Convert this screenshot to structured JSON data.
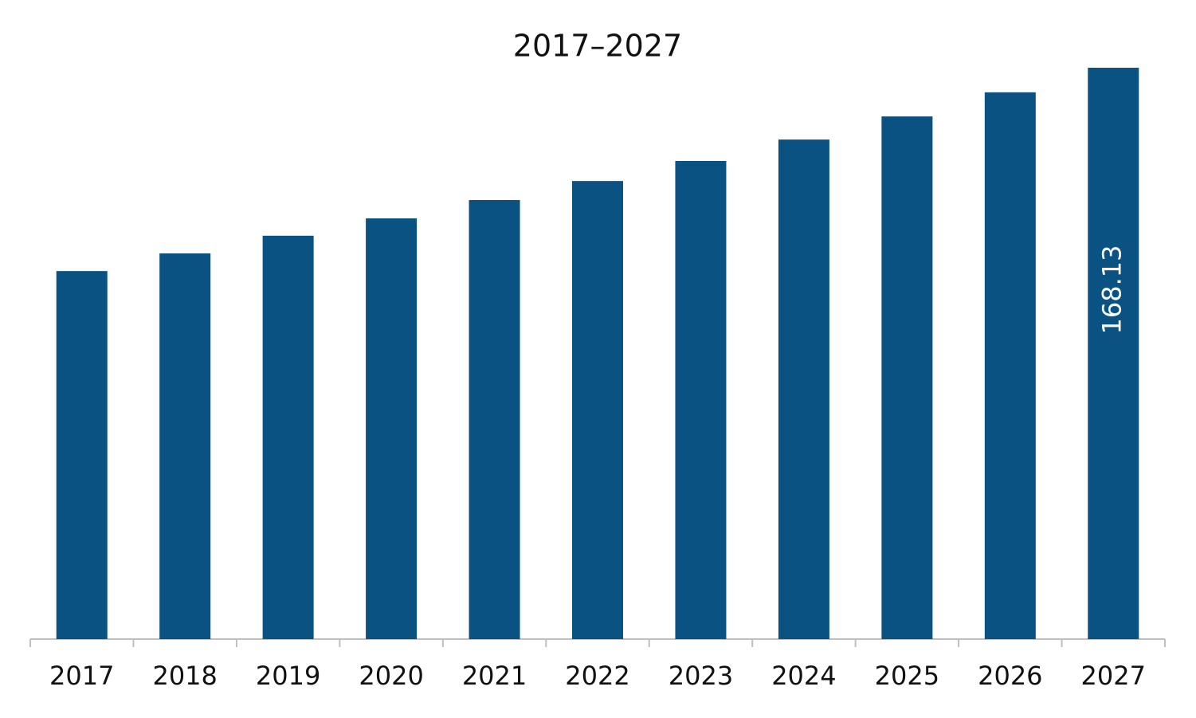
{
  "chart_data": {
    "type": "bar",
    "title": "2017–2027",
    "categories": [
      "2017",
      "2018",
      "2019",
      "2020",
      "2021",
      "2022",
      "2023",
      "2024",
      "2025",
      "2026",
      "2027"
    ],
    "values": [
      108.3,
      113.5,
      118.7,
      123.8,
      129.2,
      134.8,
      140.7,
      147.0,
      153.8,
      160.9,
      168.13
    ],
    "value_labels": [
      null,
      null,
      null,
      null,
      null,
      null,
      null,
      null,
      null,
      null,
      "168.13"
    ],
    "color": "#0a5282"
  }
}
